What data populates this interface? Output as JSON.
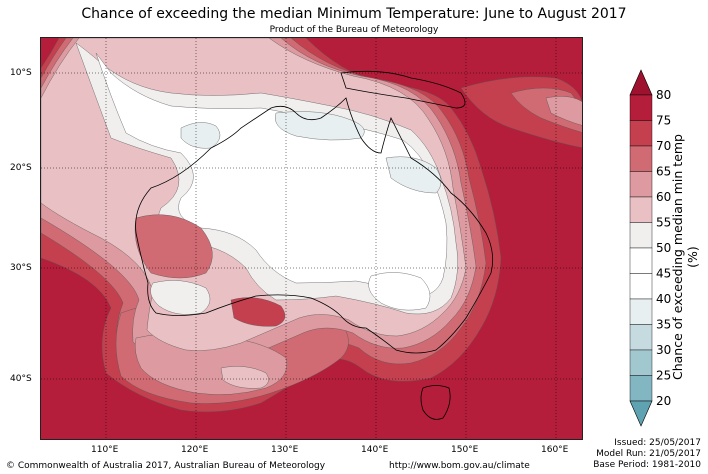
{
  "header": {
    "title": "Chance of exceeding the median Minimum Temperature: June to August 2017",
    "subtitle": "Product of the Bureau of Meteorology"
  },
  "map": {
    "lat_labels": [
      "10°S",
      "20°S",
      "30°S",
      "40°S"
    ],
    "lon_labels": [
      "110°E",
      "120°E",
      "130°E",
      "140°E",
      "150°E",
      "160°E"
    ],
    "colors": {
      "80": "#b51e3a",
      "75": "#c4404f",
      "70": "#d06a73",
      "65": "#dd9aa0",
      "60": "#e9c1c5",
      "55": "#f1eeee",
      "50": "#ffffff",
      "45": "#ffffff",
      "40": "#e8eff1",
      "35": "#c6dbe0",
      "30": "#a2c8cf",
      "25": "#82b6c1",
      "20": "#5fa2b2"
    }
  },
  "colorbar": {
    "label": "Chance of exceeding median min temp (%)",
    "ticks": [
      "80",
      "75",
      "70",
      "65",
      "60",
      "55",
      "50",
      "45",
      "40",
      "35",
      "30",
      "25",
      "20"
    ]
  },
  "footer": {
    "copyright": "© Commonwealth of Australia 2017, Australian Bureau of Meteorology",
    "url": "http://www.bom.gov.au/climate",
    "issued": "Issued: 25/05/2017",
    "model_run": "Model Run: 21/05/2017",
    "base_period": "Base Period: 1981-2010"
  }
}
